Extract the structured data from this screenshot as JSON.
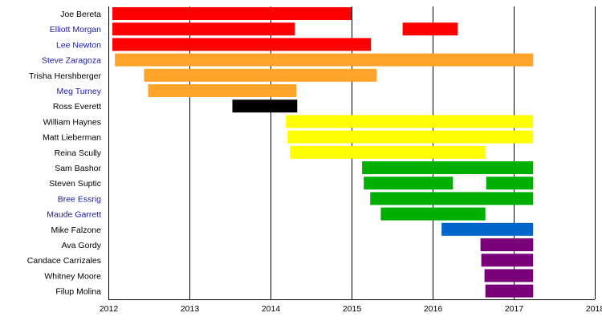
{
  "chart_data": {
    "type": "bar",
    "orientation": "horizontal-timeline",
    "x_axis": {
      "range": [
        2012,
        2018
      ],
      "ticks": [
        "2012",
        "2013",
        "2014",
        "2015",
        "2016",
        "2017",
        "2018"
      ],
      "grid": true
    },
    "colors": {
      "red": "#ff0000",
      "orange": "#ffa32b",
      "black": "#000000",
      "yellow": "#ffff00",
      "green": "#00b000",
      "blue": "#0066cc",
      "purple": "#7a007a"
    },
    "rows": [
      {
        "name": "Joe Bereta",
        "linked": false,
        "spans": [
          {
            "start": 2012.05,
            "end": 2015.0,
            "color": "red"
          }
        ]
      },
      {
        "name": "Elliott Morgan",
        "linked": true,
        "spans": [
          {
            "start": 2012.05,
            "end": 2014.3,
            "color": "red"
          },
          {
            "start": 2015.63,
            "end": 2016.31,
            "color": "red"
          }
        ]
      },
      {
        "name": "Lee Newton",
        "linked": true,
        "spans": [
          {
            "start": 2012.05,
            "end": 2015.24,
            "color": "red"
          }
        ]
      },
      {
        "name": "Steve Zaragoza",
        "linked": true,
        "spans": [
          {
            "start": 2012.08,
            "end": 2017.24,
            "color": "orange"
          }
        ]
      },
      {
        "name": "Trisha Hershberger",
        "linked": false,
        "spans": [
          {
            "start": 2012.44,
            "end": 2015.31,
            "color": "orange"
          }
        ]
      },
      {
        "name": "Meg Turney",
        "linked": true,
        "spans": [
          {
            "start": 2012.49,
            "end": 2014.32,
            "color": "orange"
          }
        ]
      },
      {
        "name": "Ross Everett",
        "linked": false,
        "spans": [
          {
            "start": 2013.53,
            "end": 2014.33,
            "color": "black"
          }
        ]
      },
      {
        "name": "William Haynes",
        "linked": false,
        "spans": [
          {
            "start": 2014.19,
            "end": 2017.24,
            "color": "yellow"
          }
        ]
      },
      {
        "name": "Matt Lieberman",
        "linked": false,
        "spans": [
          {
            "start": 2014.21,
            "end": 2017.24,
            "color": "yellow"
          }
        ]
      },
      {
        "name": "Reina Scully",
        "linked": false,
        "spans": [
          {
            "start": 2014.24,
            "end": 2016.65,
            "color": "yellow"
          }
        ]
      },
      {
        "name": "Sam Bashor",
        "linked": false,
        "spans": [
          {
            "start": 2015.13,
            "end": 2017.24,
            "color": "green"
          }
        ]
      },
      {
        "name": "Steven Suptic",
        "linked": false,
        "spans": [
          {
            "start": 2015.15,
            "end": 2016.25,
            "color": "green"
          },
          {
            "start": 2016.66,
            "end": 2017.24,
            "color": "green"
          }
        ]
      },
      {
        "name": "Bree Essrig",
        "linked": true,
        "spans": [
          {
            "start": 2015.23,
            "end": 2017.24,
            "color": "green"
          }
        ]
      },
      {
        "name": "Maude Garrett",
        "linked": true,
        "spans": [
          {
            "start": 2015.36,
            "end": 2016.65,
            "color": "green"
          }
        ]
      },
      {
        "name": "Mike Falzone",
        "linked": false,
        "spans": [
          {
            "start": 2016.11,
            "end": 2017.24,
            "color": "blue"
          }
        ]
      },
      {
        "name": "Ava Gordy",
        "linked": false,
        "spans": [
          {
            "start": 2016.59,
            "end": 2017.24,
            "color": "purple"
          }
        ]
      },
      {
        "name": "Candace Carrizales",
        "linked": false,
        "spans": [
          {
            "start": 2016.6,
            "end": 2017.24,
            "color": "purple"
          }
        ]
      },
      {
        "name": "Whitney Moore",
        "linked": false,
        "spans": [
          {
            "start": 2016.64,
            "end": 2017.24,
            "color": "purple"
          }
        ]
      },
      {
        "name": "Filup Molina",
        "linked": false,
        "spans": [
          {
            "start": 2016.65,
            "end": 2017.24,
            "color": "purple"
          }
        ]
      }
    ]
  }
}
